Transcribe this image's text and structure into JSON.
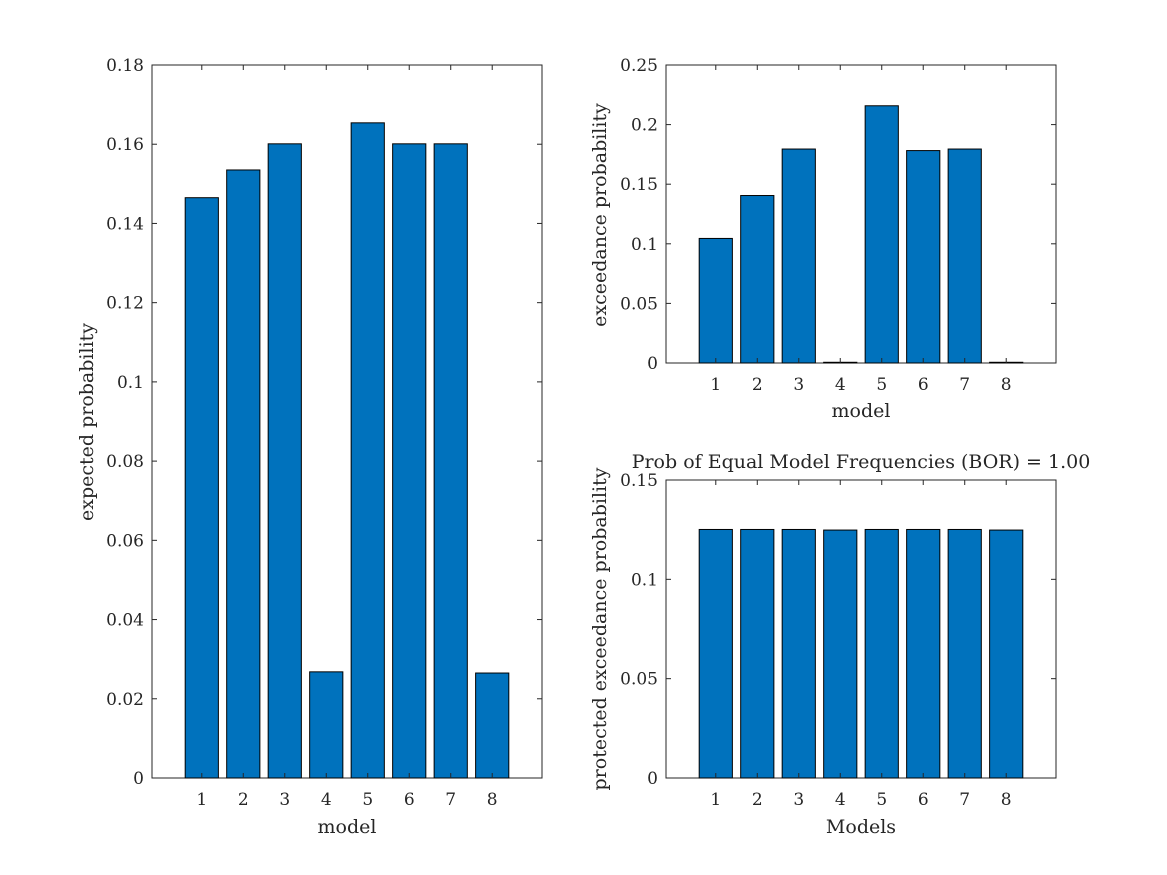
{
  "bar_color": "#0072BD",
  "chart_data": [
    {
      "type": "bar",
      "title": "",
      "xlabel": "model",
      "ylabel": "expected probability",
      "categories": [
        "1",
        "2",
        "3",
        "4",
        "5",
        "6",
        "7",
        "8"
      ],
      "values": [
        0.1465,
        0.1535,
        0.1601,
        0.0268,
        0.1654,
        0.1601,
        0.1601,
        0.0265
      ],
      "ylim": [
        0,
        0.18
      ],
      "yticks": [
        0,
        0.02,
        0.04,
        0.06,
        0.08,
        0.1,
        0.12,
        0.14,
        0.16,
        0.18
      ],
      "ytick_labels": [
        "0",
        "0.02",
        "0.04",
        "0.06",
        "0.08",
        "0.1",
        "0.12",
        "0.14",
        "0.16",
        "0.18"
      ],
      "grid": false
    },
    {
      "type": "bar",
      "title": "",
      "xlabel": "model",
      "ylabel": "exceedance probability",
      "categories": [
        "1",
        "2",
        "3",
        "4",
        "5",
        "6",
        "7",
        "8"
      ],
      "values": [
        0.1045,
        0.1405,
        0.1795,
        0.0006,
        0.2158,
        0.1782,
        0.1795,
        0.0006
      ],
      "ylim": [
        0,
        0.25
      ],
      "yticks": [
        0,
        0.05,
        0.1,
        0.15,
        0.2,
        0.25
      ],
      "ytick_labels": [
        "0",
        "0.05",
        "0.1",
        "0.15",
        "0.2",
        "0.25"
      ],
      "grid": false
    },
    {
      "type": "bar",
      "title": "Prob of Equal Model Frequencies (BOR) = 1.00",
      "xlabel": "Models",
      "ylabel": "protected exceedance probability",
      "categories": [
        "1",
        "2",
        "3",
        "4",
        "5",
        "6",
        "7",
        "8"
      ],
      "values": [
        0.1251,
        0.1251,
        0.1251,
        0.1248,
        0.1251,
        0.1251,
        0.1251,
        0.1248
      ],
      "ylim": [
        0,
        0.15
      ],
      "yticks": [
        0,
        0.05,
        0.1,
        0.15
      ],
      "ytick_labels": [
        "0",
        "0.05",
        "0.1",
        "0.15"
      ],
      "grid": false
    }
  ]
}
